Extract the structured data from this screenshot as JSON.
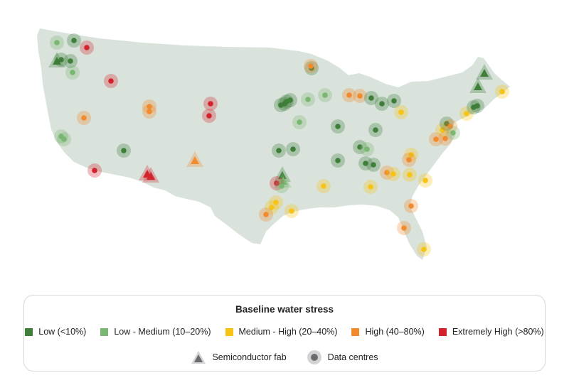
{
  "colors": {
    "land": "#d9e3dc",
    "low": "#3f7f3a",
    "low_medium": "#79b772",
    "medium_high": "#f6c316",
    "high": "#f28a2e",
    "extremely_high": "#d3232d",
    "symbol_gray": "#6c6c70"
  },
  "legend": {
    "title": "Baseline water stress",
    "categories": [
      {
        "key": "low",
        "label": "Low (<10%)"
      },
      {
        "key": "low_medium",
        "label": "Low - Medium (10–20%)"
      },
      {
        "key": "medium_high",
        "label": "Medium - High (20–40%)"
      },
      {
        "key": "high",
        "label": "High (40–80%)"
      },
      {
        "key": "extremely_high",
        "label": "Extremely High (>80%)"
      }
    ],
    "symbols": [
      {
        "key": "fab",
        "label": "Semiconductor fab",
        "icon": "triangle-icon"
      },
      {
        "key": "dc",
        "label": "Data centres",
        "icon": "circle-icon"
      }
    ]
  }
}
